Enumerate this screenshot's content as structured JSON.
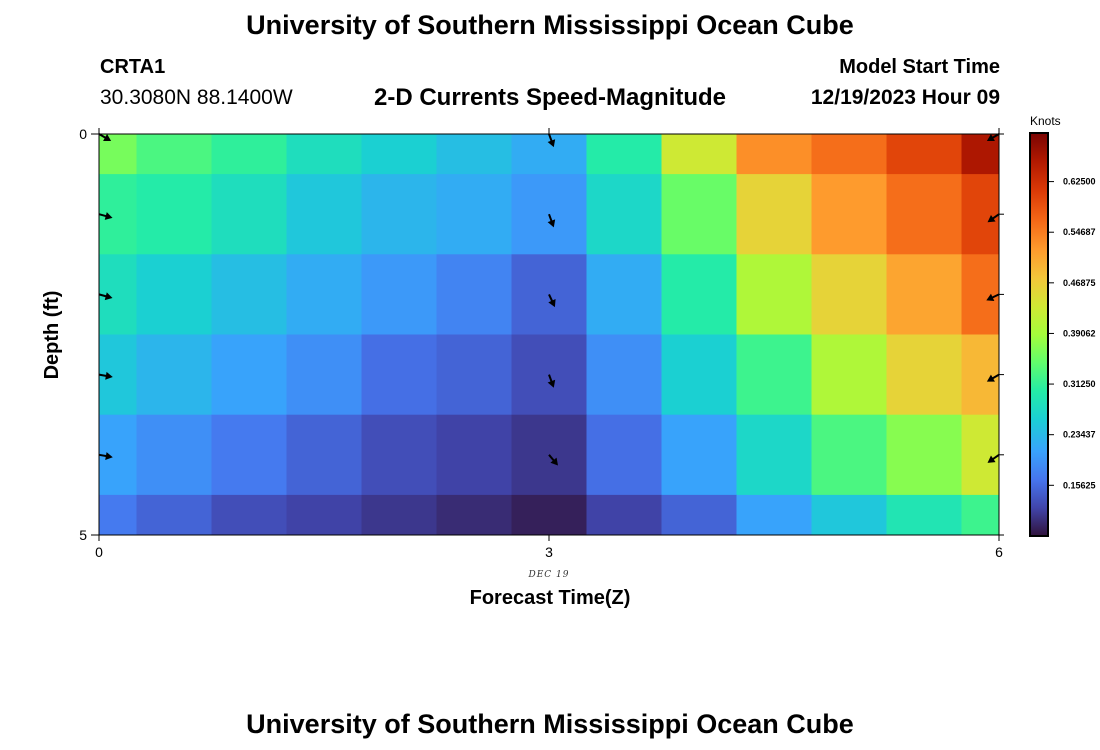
{
  "header": {
    "title": "University of Southern Mississippi Ocean Cube",
    "station": "CRTA1",
    "coordinates": "30.3080N  88.1400W",
    "subtitle": "2-D Currents Speed-Magnitude",
    "model_start_label": "Model Start Time",
    "model_start_value": "12/19/2023 Hour 09"
  },
  "footer": {
    "title": "University of Southern Mississippi Ocean Cube"
  },
  "chart_data": {
    "type": "heatmap",
    "title": "2-D Currents Speed-Magnitude",
    "xlabel": "Forecast Time(Z)",
    "ylabel": "Depth (ft)",
    "xlim": [
      0,
      6
    ],
    "ylim": [
      0,
      5
    ],
    "x_ticks": [
      "0",
      "3",
      "6"
    ],
    "y_ticks": [
      "0",
      "5"
    ],
    "date_label": "DEC 19",
    "colorbar": {
      "units": "Knots",
      "min": 0.078,
      "max": 0.7,
      "ticks": [
        "0.15625",
        "0.23437",
        "0.31250",
        "0.39062",
        "0.46875",
        "0.54687",
        "0.62500"
      ],
      "tick_values": [
        0.15625,
        0.234375,
        0.3125,
        0.390625,
        0.46875,
        0.546875,
        0.625
      ]
    },
    "column_centers": [
      0,
      0.5,
      1,
      1.5,
      2,
      2.5,
      3,
      3.5,
      4,
      4.5,
      5,
      5.5,
      6
    ],
    "row_depths": [
      0,
      1,
      2,
      3,
      4,
      5
    ],
    "values": [
      [
        0.36,
        0.33,
        0.31,
        0.28,
        0.26,
        0.24,
        0.22,
        0.3,
        0.43,
        0.53,
        0.56,
        0.6,
        0.66
      ],
      [
        0.31,
        0.3,
        0.28,
        0.25,
        0.23,
        0.22,
        0.2,
        0.27,
        0.35,
        0.46,
        0.52,
        0.56,
        0.6
      ],
      [
        0.28,
        0.26,
        0.24,
        0.22,
        0.2,
        0.18,
        0.15,
        0.22,
        0.3,
        0.4,
        0.46,
        0.51,
        0.56
      ],
      [
        0.25,
        0.23,
        0.21,
        0.19,
        0.16,
        0.15,
        0.13,
        0.19,
        0.26,
        0.32,
        0.4,
        0.46,
        0.49
      ],
      [
        0.21,
        0.19,
        0.17,
        0.15,
        0.13,
        0.12,
        0.11,
        0.16,
        0.21,
        0.27,
        0.33,
        0.37,
        0.43
      ],
      [
        0.17,
        0.15,
        0.13,
        0.12,
        0.11,
        0.1,
        0.09,
        0.12,
        0.15,
        0.21,
        0.25,
        0.29,
        0.32
      ]
    ],
    "vectors": [
      {
        "x": 0,
        "depth": 0,
        "dir": 120
      },
      {
        "x": 0,
        "depth": 1,
        "dir": 105
      },
      {
        "x": 0,
        "depth": 2,
        "dir": 105
      },
      {
        "x": 0,
        "depth": 3,
        "dir": 100
      },
      {
        "x": 0,
        "depth": 4,
        "dir": 100
      },
      {
        "x": 3,
        "depth": 0,
        "dir": 160
      },
      {
        "x": 3,
        "depth": 1,
        "dir": 160
      },
      {
        "x": 3,
        "depth": 2,
        "dir": 155
      },
      {
        "x": 3,
        "depth": 3,
        "dir": 160
      },
      {
        "x": 3,
        "depth": 4,
        "dir": 140
      },
      {
        "x": 6,
        "depth": 0,
        "dir": 240
      },
      {
        "x": 6,
        "depth": 1,
        "dir": 235
      },
      {
        "x": 6,
        "depth": 2,
        "dir": 245
      },
      {
        "x": 6,
        "depth": 3,
        "dir": 240
      },
      {
        "x": 6,
        "depth": 4,
        "dir": 235
      }
    ]
  }
}
